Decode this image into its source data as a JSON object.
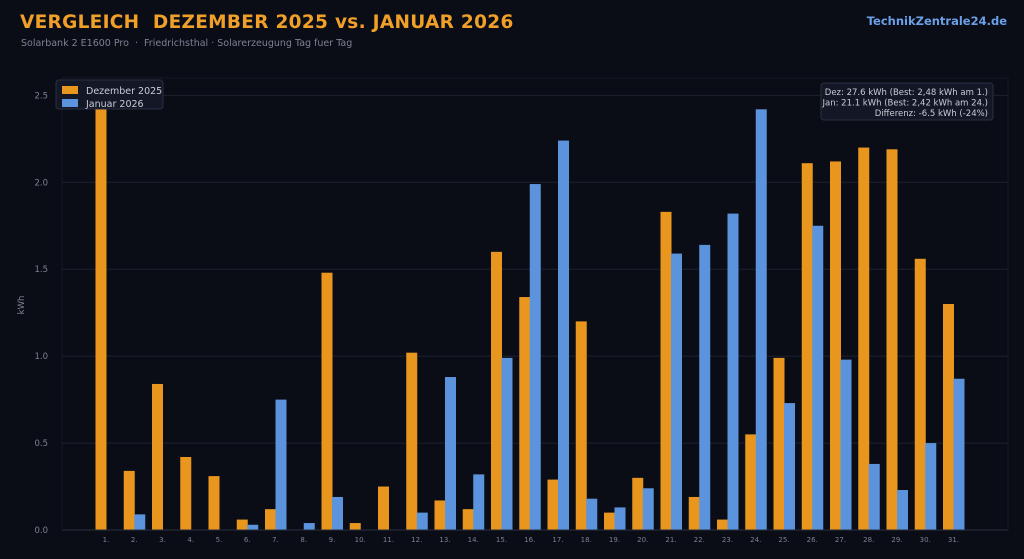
{
  "header": {
    "title": "VERGLEICH  DEZEMBER 2025 vs. JANUAR 2026",
    "subtitle": "Solarbank 2 E1600 Pro  ·  Friedrichsthal · Solarerzeugung Tag fuer Tag",
    "brand": "TechnikZentrale24.de"
  },
  "info_box": {
    "lines": [
      "Dez: 27.6 kWh (Best: 2,48 kWh am 1.)",
      "Jan: 21.1 kWh (Best: 2,42 kWh am 24.)",
      "Differenz: -6.5 kWh (-24%)"
    ]
  },
  "chart_data": {
    "type": "bar",
    "title": "VERGLEICH  DEZEMBER 2025 vs. JANUAR 2026",
    "ylabel": "kWh",
    "xlabel": "",
    "ylim": [
      0,
      2.6
    ],
    "yticks": [
      0.0,
      0.5,
      1.0,
      1.5,
      2.0,
      2.5
    ],
    "ytick_labels": [
      "0.0",
      "0.5",
      "1.0",
      "1.5",
      "2.0",
      "2.5"
    ],
    "grid": true,
    "legend_position": "top-left",
    "categories": [
      "1.",
      "2.",
      "3.",
      "4.",
      "5.",
      "6.",
      "7.",
      "8.",
      "9.",
      "10.",
      "11.",
      "12.",
      "13.",
      "14.",
      "15.",
      "16.",
      "17.",
      "18.",
      "19.",
      "20.",
      "21.",
      "22.",
      "23.",
      "24.",
      "25.",
      "26.",
      "27.",
      "28.",
      "29.",
      "30.",
      "31."
    ],
    "series": [
      {
        "name": "Dezember 2025",
        "color": "#e8961e",
        "values": [
          2.48,
          0.34,
          0.84,
          0.42,
          0.31,
          0.06,
          0.12,
          0,
          1.48,
          0.04,
          0.25,
          1.02,
          0.17,
          0.12,
          1.6,
          1.34,
          0.29,
          1.2,
          0.1,
          0.3,
          1.83,
          0.19,
          0.06,
          0.55,
          0.99,
          2.11,
          2.12,
          2.2,
          2.19,
          1.56,
          1.3
        ]
      },
      {
        "name": "Januar 2026",
        "color": "#5b93dc",
        "values": [
          0,
          0.09,
          0,
          0,
          0,
          0.03,
          0.75,
          0.04,
          0.19,
          0,
          0,
          0.1,
          0.88,
          0.32,
          0.99,
          1.99,
          2.24,
          0.18,
          0.13,
          0.24,
          1.59,
          1.64,
          1.82,
          2.42,
          0.73,
          1.75,
          0.98,
          0.38,
          0.23,
          0.5,
          0.87
        ]
      }
    ]
  }
}
